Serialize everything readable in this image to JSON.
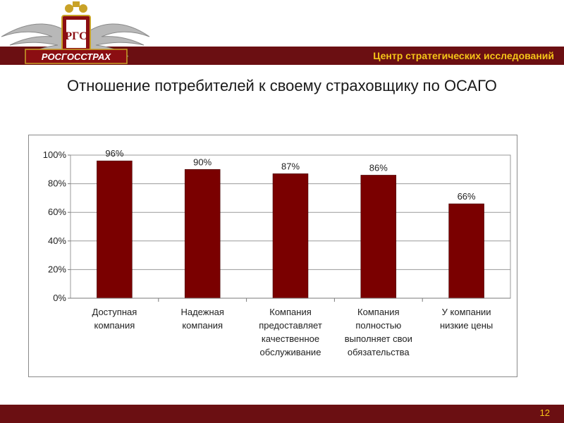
{
  "brand": {
    "logo_text": "РОСГОССТРАХ",
    "logo_monogram": "РГС",
    "header_title": "Центр стратегических исследований",
    "primary_color": "#6b0f12",
    "accent_color": "#f5c518",
    "logo_icon": "double-headed-eagle-emblem"
  },
  "slide": {
    "title": "Отношение потребителей к своему страховщику по ОСАГО",
    "page_number": "12"
  },
  "chart_data": {
    "type": "bar",
    "categories": [
      [
        "Доступная",
        "компания"
      ],
      [
        "Надежная",
        "компания"
      ],
      [
        "Компания",
        "предоставляет",
        "качественное",
        "обслуживание"
      ],
      [
        "Компания",
        "полностью",
        "выполняет свои",
        "обязательства"
      ],
      [
        "У компании",
        "низкие цены"
      ]
    ],
    "values": [
      96,
      90,
      87,
      86,
      66
    ],
    "value_labels": [
      "96%",
      "90%",
      "87%",
      "86%",
      "66%"
    ],
    "y_ticks": [
      "0%",
      "20%",
      "40%",
      "60%",
      "80%",
      "100%"
    ],
    "ylim": [
      0,
      100
    ],
    "bar_color": "#7a0000",
    "grid": true,
    "legend": "none"
  }
}
